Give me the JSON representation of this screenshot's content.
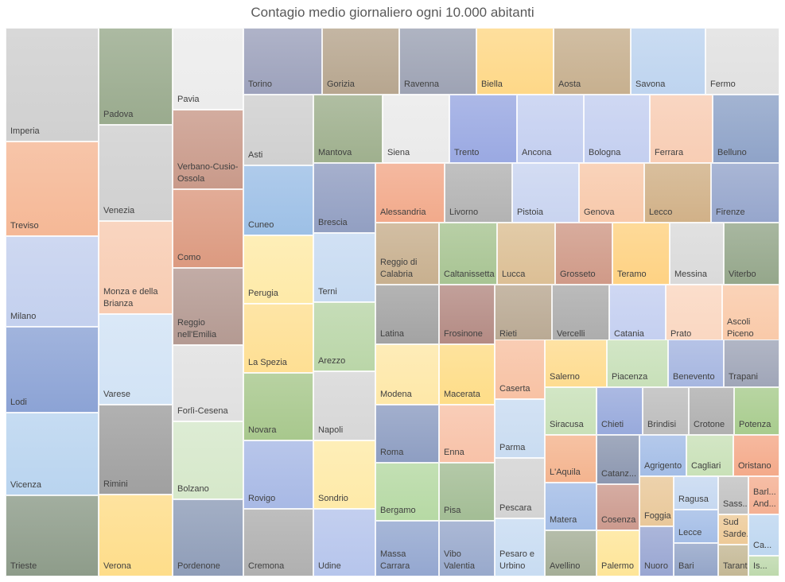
{
  "chart_data": {
    "type": "treemap",
    "title": "Contagio medio giornaliero ogni 10.000 abitanti",
    "legend": "none",
    "items": [
      {
        "label": "Imperia",
        "color": "#d0d0d0"
      },
      {
        "label": "Treviso",
        "color": "#f5b896"
      },
      {
        "label": "Milano",
        "color": "#c3d0ee"
      },
      {
        "label": "Lodi",
        "color": "#8ca3d5"
      },
      {
        "label": "Vicenza",
        "color": "#b9d4ef"
      },
      {
        "label": "Trieste",
        "color": "#8e9c8a"
      },
      {
        "label": "Padova",
        "color": "#9aab8e"
      },
      {
        "label": "Venezia",
        "color": "#d0d0d0"
      },
      {
        "label": "Monza e della Brianza",
        "color": "#f8ccb2"
      },
      {
        "label": "Varese",
        "color": "#d2e3f5"
      },
      {
        "label": "Rimini",
        "color": "#a0a0a0"
      },
      {
        "label": "Verona",
        "color": "#fedd8a"
      },
      {
        "label": "Pavia",
        "color": "#ececec"
      },
      {
        "label": "Verbano-Cusio-Ossola",
        "color": "#c99a8a"
      },
      {
        "label": "Como",
        "color": "#dc9a80"
      },
      {
        "label": "Reggio nell'Emilia",
        "color": "#b49a92"
      },
      {
        "label": "Forlì-Cesena",
        "color": "#e0e0e0"
      },
      {
        "label": "Bolzano",
        "color": "#d6e8ca"
      },
      {
        "label": "Pordenone",
        "color": "#8f9db8"
      },
      {
        "label": "Torino",
        "color": "#9da2bc"
      },
      {
        "label": "Gorizia",
        "color": "#b7a68f"
      },
      {
        "label": "Ravenna",
        "color": "#9ea3b4"
      },
      {
        "label": "Biella",
        "color": "#fed888"
      },
      {
        "label": "Aosta",
        "color": "#c7b08f"
      },
      {
        "label": "Savona",
        "color": "#bed4ef"
      },
      {
        "label": "Fermo",
        "color": "#e1e1e1"
      },
      {
        "label": "Asti",
        "color": "#d0d0d0"
      },
      {
        "label": "Mantova",
        "color": "#9fb08e"
      },
      {
        "label": "Siena",
        "color": "#eaeaea"
      },
      {
        "label": "Trento",
        "color": "#9aa9e2"
      },
      {
        "label": "Ancona",
        "color": "#c4cff0"
      },
      {
        "label": "Bologna",
        "color": "#c4cff0"
      },
      {
        "label": "Ferrara",
        "color": "#f8cdb4"
      },
      {
        "label": "Belluno",
        "color": "#8fa3c8"
      },
      {
        "label": "Cuneo",
        "color": "#9dc0e6"
      },
      {
        "label": "Brescia",
        "color": "#929fc2"
      },
      {
        "label": "Alessandria",
        "color": "#f2aa8b"
      },
      {
        "label": "Livorno",
        "color": "#b3b3b3"
      },
      {
        "label": "Pistoia",
        "color": "#c9d4f0"
      },
      {
        "label": "Genova",
        "color": "#f8c9ab"
      },
      {
        "label": "Lecco",
        "color": "#d1b188"
      },
      {
        "label": "Firenze",
        "color": "#96a6cc"
      },
      {
        "label": "Perugia",
        "color": "#feeaa8"
      },
      {
        "label": "Terni",
        "color": "#c7daf1"
      },
      {
        "label": "Reggio di Calabria",
        "color": "#c8b08f"
      },
      {
        "label": "Caltanissetta",
        "color": "#a8c493"
      },
      {
        "label": "Lucca",
        "color": "#dcbf95"
      },
      {
        "label": "Grosseto",
        "color": "#d09a88"
      },
      {
        "label": "Teramo",
        "color": "#fed283"
      },
      {
        "label": "Messina",
        "color": "#dadada"
      },
      {
        "label": "Viterbo",
        "color": "#95a78b"
      },
      {
        "label": "La Spezia",
        "color": "#fedf93"
      },
      {
        "label": "Arezzo",
        "color": "#bad6a8"
      },
      {
        "label": "Latina",
        "color": "#a3a3a3"
      },
      {
        "label": "Frosinone",
        "color": "#b48b84"
      },
      {
        "label": "Rieti",
        "color": "#b9a993"
      },
      {
        "label": "Vercelli",
        "color": "#acacac"
      },
      {
        "label": "Catania",
        "color": "#c4cff0"
      },
      {
        "label": "Prato",
        "color": "#fad7c1"
      },
      {
        "label": "Ascoli Piceno",
        "color": "#f9c9a8"
      },
      {
        "label": "Novara",
        "color": "#a8c88d"
      },
      {
        "label": "Napoli",
        "color": "#d7d7d7"
      },
      {
        "label": "Modena",
        "color": "#fee8a8"
      },
      {
        "label": "Macerata",
        "color": "#fedd88"
      },
      {
        "label": "Caserta",
        "color": "#f8c2a4"
      },
      {
        "label": "Salerno",
        "color": "#fedc90"
      },
      {
        "label": "Piacenza",
        "color": "#c8e0b9"
      },
      {
        "label": "Benevento",
        "color": "#a6b6e0"
      },
      {
        "label": "Trapani",
        "color": "#a0a6b8"
      },
      {
        "label": "Rovigo",
        "color": "#a8b9e5"
      },
      {
        "label": "Sondrio",
        "color": "#feeaa8"
      },
      {
        "label": "Roma",
        "color": "#8e9ec2"
      },
      {
        "label": "Enna",
        "color": "#f8c2a8"
      },
      {
        "label": "Parma",
        "color": "#c9dcf1"
      },
      {
        "label": "Siracusa",
        "color": "#c8e0b8"
      },
      {
        "label": "Chieti",
        "color": "#98aadc"
      },
      {
        "label": "Brindisi",
        "color": "#bdbdbd"
      },
      {
        "label": "Crotone",
        "color": "#b0b0b0"
      },
      {
        "label": "Potenza",
        "color": "#a8cc8e"
      },
      {
        "label": "L'Aquila",
        "color": "#f4b48f"
      },
      {
        "label": "Catanz...",
        "color": "#8c97b0"
      },
      {
        "label": "Agrigento",
        "color": "#a4bde6"
      },
      {
        "label": "Cagliari",
        "color": "#c9e1b8"
      },
      {
        "label": "Oristano",
        "color": "#f4aa8a"
      },
      {
        "label": "Bergamo",
        "color": "#b6d9a4"
      },
      {
        "label": "Pisa",
        "color": "#a3bd95"
      },
      {
        "label": "Pescara",
        "color": "#d3d3d3"
      },
      {
        "label": "Matera",
        "color": "#a4bde6"
      },
      {
        "label": "Cosenza",
        "color": "#cc9a8e"
      },
      {
        "label": "Foggia",
        "color": "#e9c89a"
      },
      {
        "label": "Ragusa",
        "color": "#c6d8f0"
      },
      {
        "label": "Sass...",
        "color": "#c2c2c2"
      },
      {
        "label": "Barl... And...",
        "color": "#f4b093"
      },
      {
        "label": "Lecce",
        "color": "#a4bde6"
      },
      {
        "label": "Sud Sarde...",
        "color": "#edca98"
      },
      {
        "label": "Cremona",
        "color": "#b0b0b0"
      },
      {
        "label": "Udine",
        "color": "#b6c5ec"
      },
      {
        "label": "Massa Carrara",
        "color": "#94a7d0"
      },
      {
        "label": "Vibo Valentia",
        "color": "#98a9cc"
      },
      {
        "label": "Pesaro e Urbino",
        "color": "#c8dcf2"
      },
      {
        "label": "Avellino",
        "color": "#a5ae97"
      },
      {
        "label": "Palermo",
        "color": "#fee598"
      },
      {
        "label": "Nuoro",
        "color": "#99a6d2"
      },
      {
        "label": "Bari",
        "color": "#94a5c8"
      },
      {
        "label": "Taranto",
        "color": "#c4b895"
      },
      {
        "label": "Ca...",
        "color": "#bed7f0"
      },
      {
        "label": "Is...",
        "color": "#bed9ad"
      }
    ]
  }
}
